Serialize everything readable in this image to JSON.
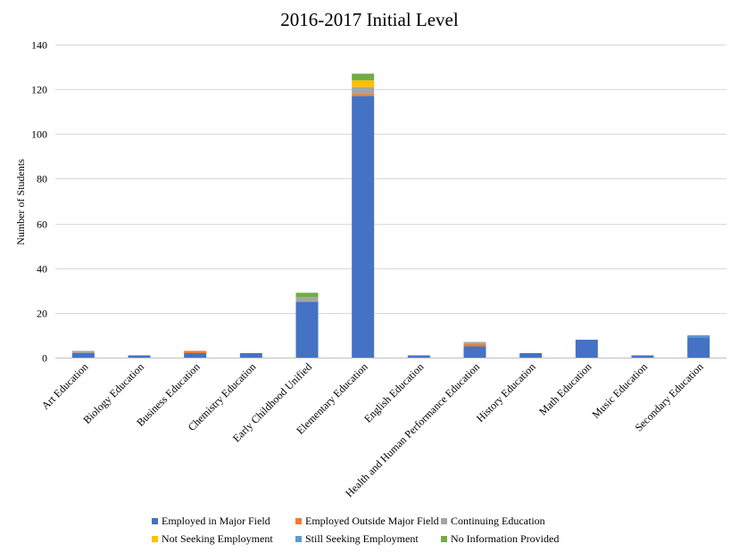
{
  "chart_data": {
    "type": "bar",
    "stacked": true,
    "title": "2016-2017 Initial Level",
    "ylabel": "Number of Students",
    "xlabel": "",
    "ylim": [
      0,
      140
    ],
    "yticks": [
      0,
      20,
      40,
      60,
      80,
      100,
      120,
      140
    ],
    "grid": true,
    "legend_position": "bottom",
    "categories": [
      "Art Education",
      "Biology Education",
      "Business Education",
      "Chemistry Education",
      "Early Childhood Unified",
      "Elementary Education",
      "English Education",
      "Health and Human Performance Education",
      "History Education",
      "Math Education",
      "Music Education",
      "Secondary Education"
    ],
    "series": [
      {
        "name": "Employed in Major Field",
        "color": "#4472C4",
        "values": [
          2,
          1,
          2,
          2,
          25,
          117,
          1,
          5,
          2,
          8,
          1,
          9
        ]
      },
      {
        "name": "Employed Outside Major Field",
        "color": "#ED7D31",
        "values": [
          0,
          0,
          1,
          0,
          0,
          1,
          0,
          1,
          0,
          0,
          0,
          0
        ]
      },
      {
        "name": "Continuing Education",
        "color": "#A5A5A5",
        "values": [
          1,
          0,
          0,
          0,
          2,
          3,
          0,
          1,
          0,
          0,
          0,
          0
        ]
      },
      {
        "name": "Not Seeking Employment",
        "color": "#FFC000",
        "values": [
          0,
          0,
          0,
          0,
          0,
          3,
          0,
          0,
          0,
          0,
          0,
          0
        ]
      },
      {
        "name": "Still Seeking Employment",
        "color": "#5B9BD5",
        "values": [
          0,
          0,
          0,
          0,
          0,
          0,
          0,
          0,
          0,
          0,
          0,
          1
        ]
      },
      {
        "name": "No Information Provided",
        "color": "#70AD47",
        "values": [
          0,
          0,
          0,
          0,
          2,
          3,
          0,
          0,
          0,
          0,
          0,
          0
        ]
      }
    ]
  }
}
